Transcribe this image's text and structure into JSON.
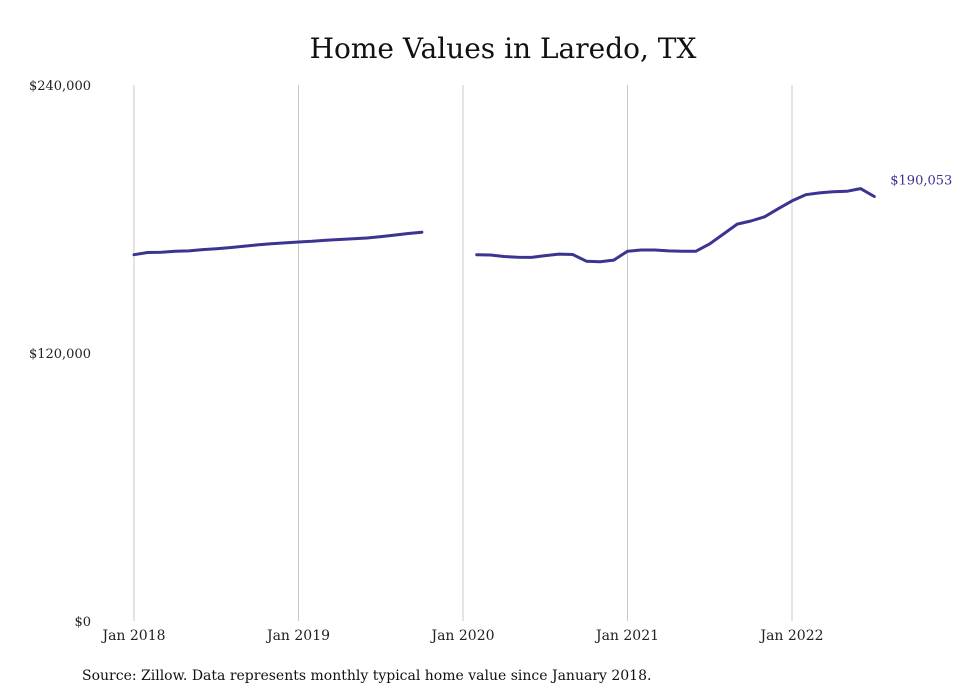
{
  "chart_data": {
    "type": "line",
    "title": "Home Values in Laredo, TX",
    "xlabel": "",
    "ylabel": "",
    "ylim": [
      0,
      240000
    ],
    "ytick_labels": [
      "$0",
      "$120,000",
      "$240,000"
    ],
    "ytick_values": [
      0,
      120000,
      240000
    ],
    "xtick_labels": [
      "Jan 2018",
      "Jan 2019",
      "Jan 2020",
      "Jan 2021",
      "Jan 2022"
    ],
    "xtick_dates": [
      "2018-01",
      "2019-01",
      "2020-01",
      "2021-01",
      "2022-01"
    ],
    "grid": "vertical",
    "line_color": "#3b3491",
    "end_label": "$190,053",
    "segments": [
      {
        "x": [
          "2018-01",
          "2018-02",
          "2018-03",
          "2018-04",
          "2018-05",
          "2018-06",
          "2018-07",
          "2018-08",
          "2018-09",
          "2018-10",
          "2018-11",
          "2018-12",
          "2019-01",
          "2019-02",
          "2019-03",
          "2019-04",
          "2019-05",
          "2019-06",
          "2019-07",
          "2019-08",
          "2019-09",
          "2019-10"
        ],
        "y": [
          164000,
          165000,
          165100,
          165600,
          165700,
          166300,
          166700,
          167200,
          167800,
          168400,
          168900,
          169300,
          169700,
          170000,
          170500,
          170800,
          171200,
          171500,
          172100,
          172800,
          173500,
          174100
        ]
      },
      {
        "x": [
          "2020-02",
          "2020-03",
          "2020-04",
          "2020-05",
          "2020-06",
          "2020-07",
          "2020-08",
          "2020-09",
          "2020-10",
          "2020-11",
          "2020-12",
          "2021-01",
          "2021-02",
          "2021-03",
          "2021-04",
          "2021-05",
          "2021-06",
          "2021-07",
          "2021-08",
          "2021-09",
          "2021-10",
          "2021-11",
          "2021-12",
          "2022-01",
          "2022-02",
          "2022-03",
          "2022-04",
          "2022-05",
          "2022-06",
          "2022-07"
        ],
        "y": [
          164000,
          163900,
          163200,
          162900,
          162800,
          163600,
          164300,
          164100,
          161100,
          160900,
          161600,
          165600,
          166100,
          166100,
          165700,
          165600,
          165600,
          168900,
          173300,
          177700,
          179100,
          181000,
          184600,
          188100,
          190900,
          191700,
          192200,
          192400,
          193600,
          190053
        ]
      }
    ]
  }
}
